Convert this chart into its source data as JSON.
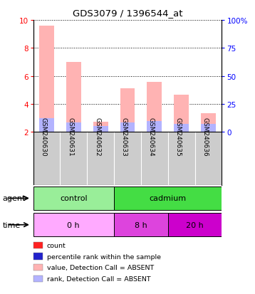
{
  "title": "GDS3079 / 1396544_at",
  "samples": [
    "GSM240630",
    "GSM240631",
    "GSM240632",
    "GSM240633",
    "GSM240634",
    "GSM240635",
    "GSM240636"
  ],
  "value_absent": [
    9.6,
    7.0,
    2.75,
    5.1,
    5.55,
    4.65,
    3.35
  ],
  "rank_absent": [
    3.0,
    2.7,
    2.4,
    2.7,
    2.8,
    2.55,
    2.6
  ],
  "ylim_left": [
    2,
    10
  ],
  "ylim_right": [
    0,
    100
  ],
  "yticks_left": [
    2,
    4,
    6,
    8,
    10
  ],
  "yticks_right": [
    0,
    25,
    50,
    75,
    100
  ],
  "ytick_labels_right": [
    "0",
    "25",
    "50",
    "75",
    "100%"
  ],
  "color_value_absent": "#ffb3b3",
  "color_rank_absent": "#b3b3ff",
  "color_count_present": "#ff2222",
  "color_rank_present": "#2222cc",
  "agent_groups": [
    {
      "label": "control",
      "start": 0,
      "end": 3,
      "color": "#99ee99"
    },
    {
      "label": "cadmium",
      "start": 3,
      "end": 7,
      "color": "#44dd44"
    }
  ],
  "time_groups": [
    {
      "label": "0 h",
      "start": 0,
      "end": 3,
      "color": "#ffaaff"
    },
    {
      "label": "8 h",
      "start": 3,
      "end": 5,
      "color": "#dd44dd"
    },
    {
      "label": "20 h",
      "start": 5,
      "end": 7,
      "color": "#cc00cc"
    }
  ],
  "legend_items": [
    {
      "color": "#ff2222",
      "label": "count"
    },
    {
      "color": "#2222cc",
      "label": "percentile rank within the sample"
    },
    {
      "color": "#ffb3b3",
      "label": "value, Detection Call = ABSENT"
    },
    {
      "color": "#b3b3ff",
      "label": "rank, Detection Call = ABSENT"
    }
  ],
  "bar_width": 0.55,
  "bg_color": "#cccccc",
  "plot_bg": "#ffffff"
}
